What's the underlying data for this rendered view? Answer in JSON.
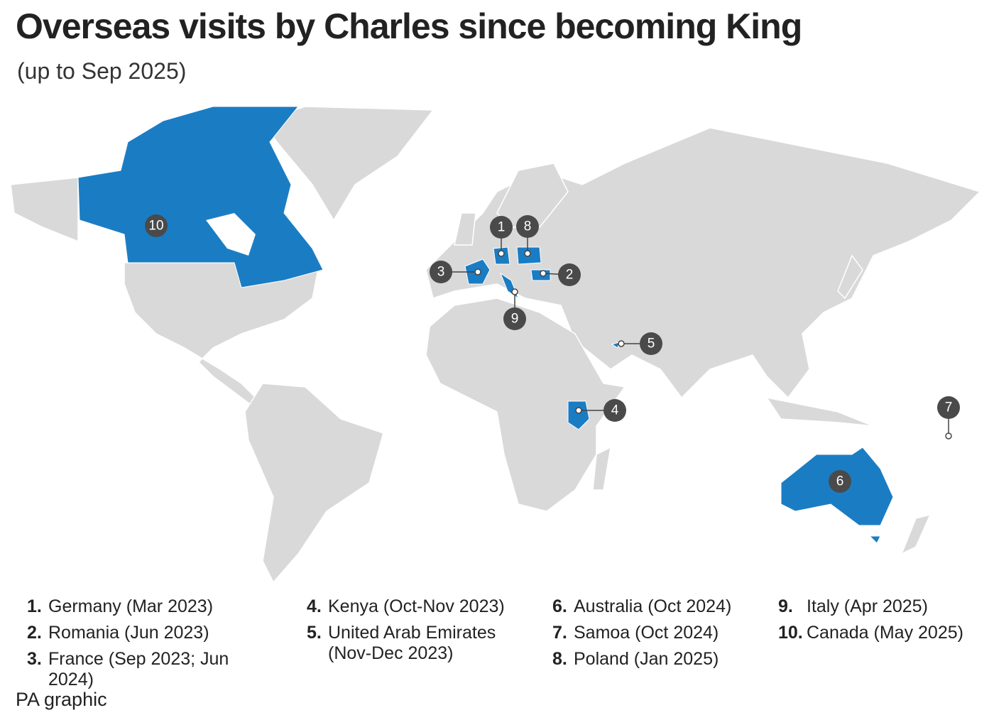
{
  "title": "Overseas visits by Charles since becoming King",
  "subtitle": "(up to Sep 2025)",
  "visits": [
    {
      "number": "1.",
      "marker": "1",
      "place": "Germany (Mar 2023)"
    },
    {
      "number": "2.",
      "marker": "2",
      "place": "Romania (Jun 2023)"
    },
    {
      "number": "3.",
      "marker": "3",
      "place": "France (Sep 2023; Jun 2024)"
    },
    {
      "number": "4.",
      "marker": "4",
      "place": "Kenya (Oct-Nov 2023)"
    },
    {
      "number": "5.",
      "marker": "5",
      "place": "United Arab Emirates (Nov-Dec 2023)"
    },
    {
      "number": "6.",
      "marker": "6",
      "place": "Australia (Oct 2024)"
    },
    {
      "number": "7.",
      "marker": "7",
      "place": "Samoa (Oct 2024)"
    },
    {
      "number": "8.",
      "marker": "8",
      "place": "Poland (Jan 2025)"
    },
    {
      "number": "9.",
      "marker": "9",
      "place": "Italy (Apr 2025)"
    },
    {
      "number": "10.",
      "marker": "10",
      "place": "Canada (May 2025)"
    }
  ],
  "source": "PA graphic"
}
